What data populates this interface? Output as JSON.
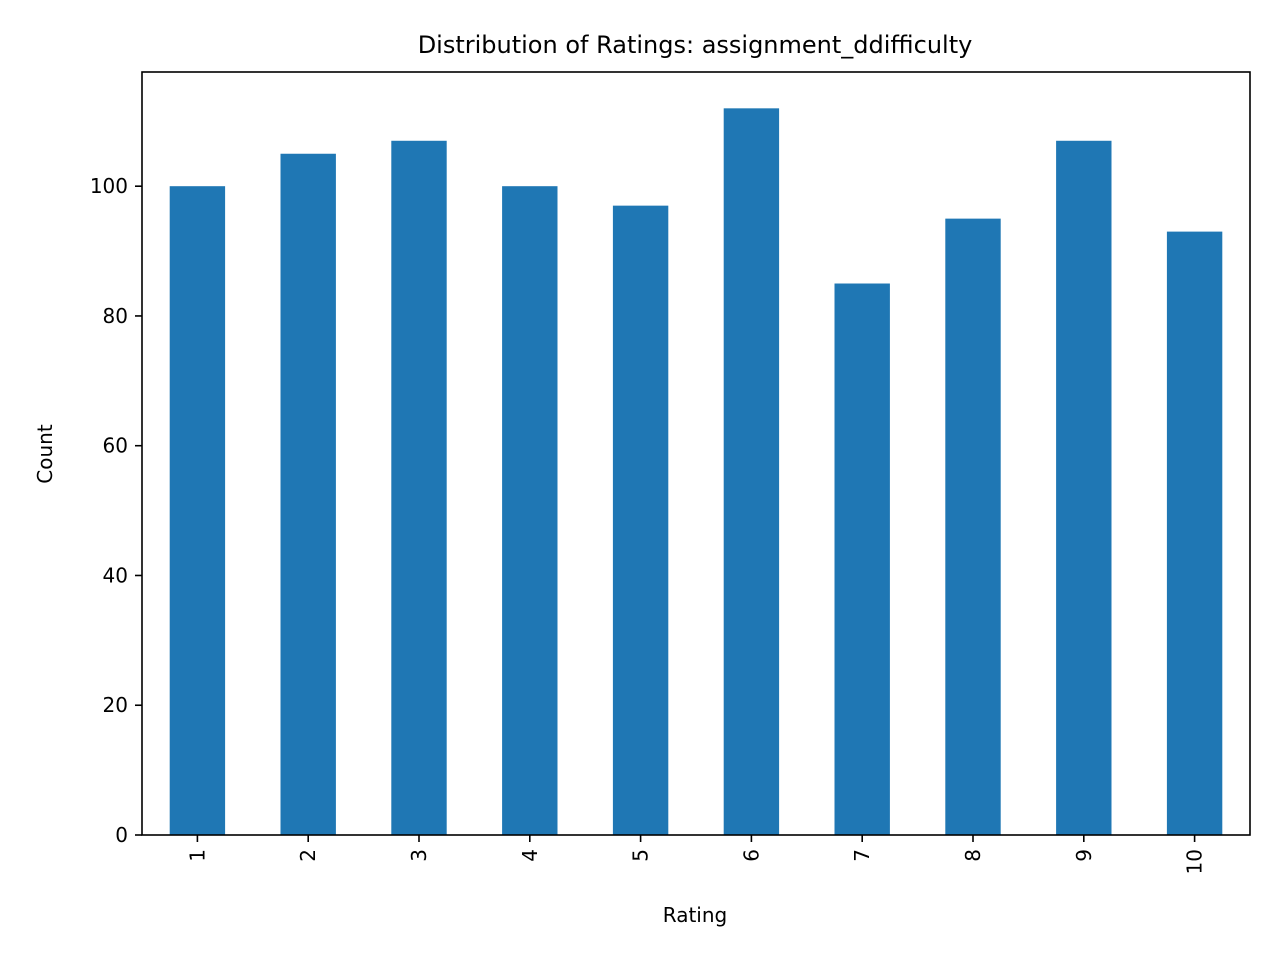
{
  "chart_data": {
    "type": "bar",
    "title": "Distribution of Ratings: assignment_ddifficulty",
    "xlabel": "Rating",
    "ylabel": "Count",
    "categories": [
      "1",
      "2",
      "3",
      "4",
      "5",
      "6",
      "7",
      "8",
      "9",
      "10"
    ],
    "values": [
      100,
      105,
      107,
      100,
      97,
      112,
      85,
      95,
      107,
      93
    ],
    "ylim": [
      0,
      117.6
    ],
    "yticks": [
      0,
      20,
      40,
      60,
      80,
      100
    ],
    "bar_color": "#1f77b4",
    "grid": false,
    "legend": "none",
    "xtick_rotation": "vertical"
  }
}
